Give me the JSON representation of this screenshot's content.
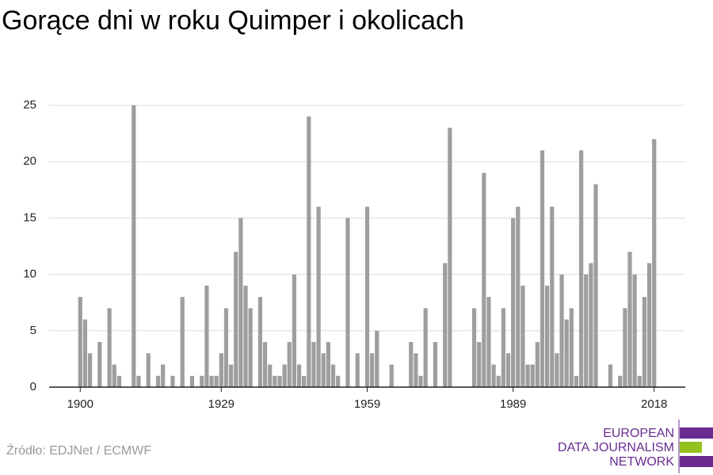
{
  "chart_data": {
    "type": "bar",
    "title": "Gorące dni w roku Quimper i okolicach",
    "source": "Źródło: EDJNet / ECMWF",
    "logo": [
      "EUROPEAN",
      "DATA JOURNALISM",
      "NETWORK"
    ],
    "color": "#9e9e9e",
    "x": [
      1900,
      1901,
      1902,
      1903,
      1904,
      1905,
      1906,
      1907,
      1908,
      1909,
      1910,
      1911,
      1912,
      1913,
      1914,
      1915,
      1916,
      1917,
      1918,
      1919,
      1920,
      1921,
      1922,
      1923,
      1924,
      1925,
      1926,
      1927,
      1928,
      1929,
      1930,
      1931,
      1932,
      1933,
      1934,
      1935,
      1936,
      1937,
      1938,
      1939,
      1940,
      1941,
      1942,
      1943,
      1944,
      1945,
      1946,
      1947,
      1948,
      1949,
      1950,
      1951,
      1952,
      1953,
      1954,
      1955,
      1956,
      1957,
      1958,
      1959,
      1960,
      1961,
      1962,
      1963,
      1964,
      1965,
      1966,
      1967,
      1968,
      1969,
      1970,
      1971,
      1972,
      1973,
      1974,
      1975,
      1976,
      1977,
      1978,
      1979,
      1980,
      1981,
      1982,
      1983,
      1984,
      1985,
      1986,
      1987,
      1988,
      1989,
      1990,
      1991,
      1992,
      1993,
      1994,
      1995,
      1996,
      1997,
      1998,
      1999,
      2000,
      2001,
      2002,
      2003,
      2004,
      2005,
      2006,
      2007,
      2008,
      2009,
      2010,
      2011,
      2012,
      2013,
      2014,
      2015,
      2016,
      2017,
      2018
    ],
    "values": [
      8,
      6,
      3,
      0,
      4,
      0,
      7,
      2,
      1,
      0,
      0,
      25,
      1,
      0,
      3,
      0,
      1,
      2,
      0,
      1,
      0,
      8,
      0,
      1,
      0,
      1,
      9,
      1,
      1,
      3,
      7,
      2,
      12,
      15,
      9,
      7,
      0,
      8,
      4,
      2,
      1,
      1,
      2,
      4,
      10,
      2,
      1,
      24,
      4,
      16,
      3,
      4,
      2,
      1,
      0,
      15,
      0,
      3,
      0,
      16,
      3,
      5,
      0,
      0,
      2,
      0,
      0,
      0,
      4,
      3,
      1,
      7,
      0,
      4,
      0,
      11,
      23,
      0,
      0,
      0,
      0,
      7,
      4,
      19,
      8,
      2,
      1,
      7,
      3,
      15,
      16,
      9,
      2,
      2,
      4,
      21,
      9,
      16,
      3,
      10,
      6,
      7,
      1,
      21,
      10,
      11,
      18,
      0,
      0,
      2,
      0,
      1,
      7,
      12,
      10,
      1,
      8,
      11,
      22
    ],
    "xlim": [
      1893.6,
      2024.4
    ],
    "xticks": [
      1900,
      1929,
      1959,
      1989,
      2018
    ],
    "ylim": [
      0,
      25
    ],
    "yticks": [
      0,
      5,
      10,
      15,
      20,
      25
    ],
    "grid": true
  }
}
